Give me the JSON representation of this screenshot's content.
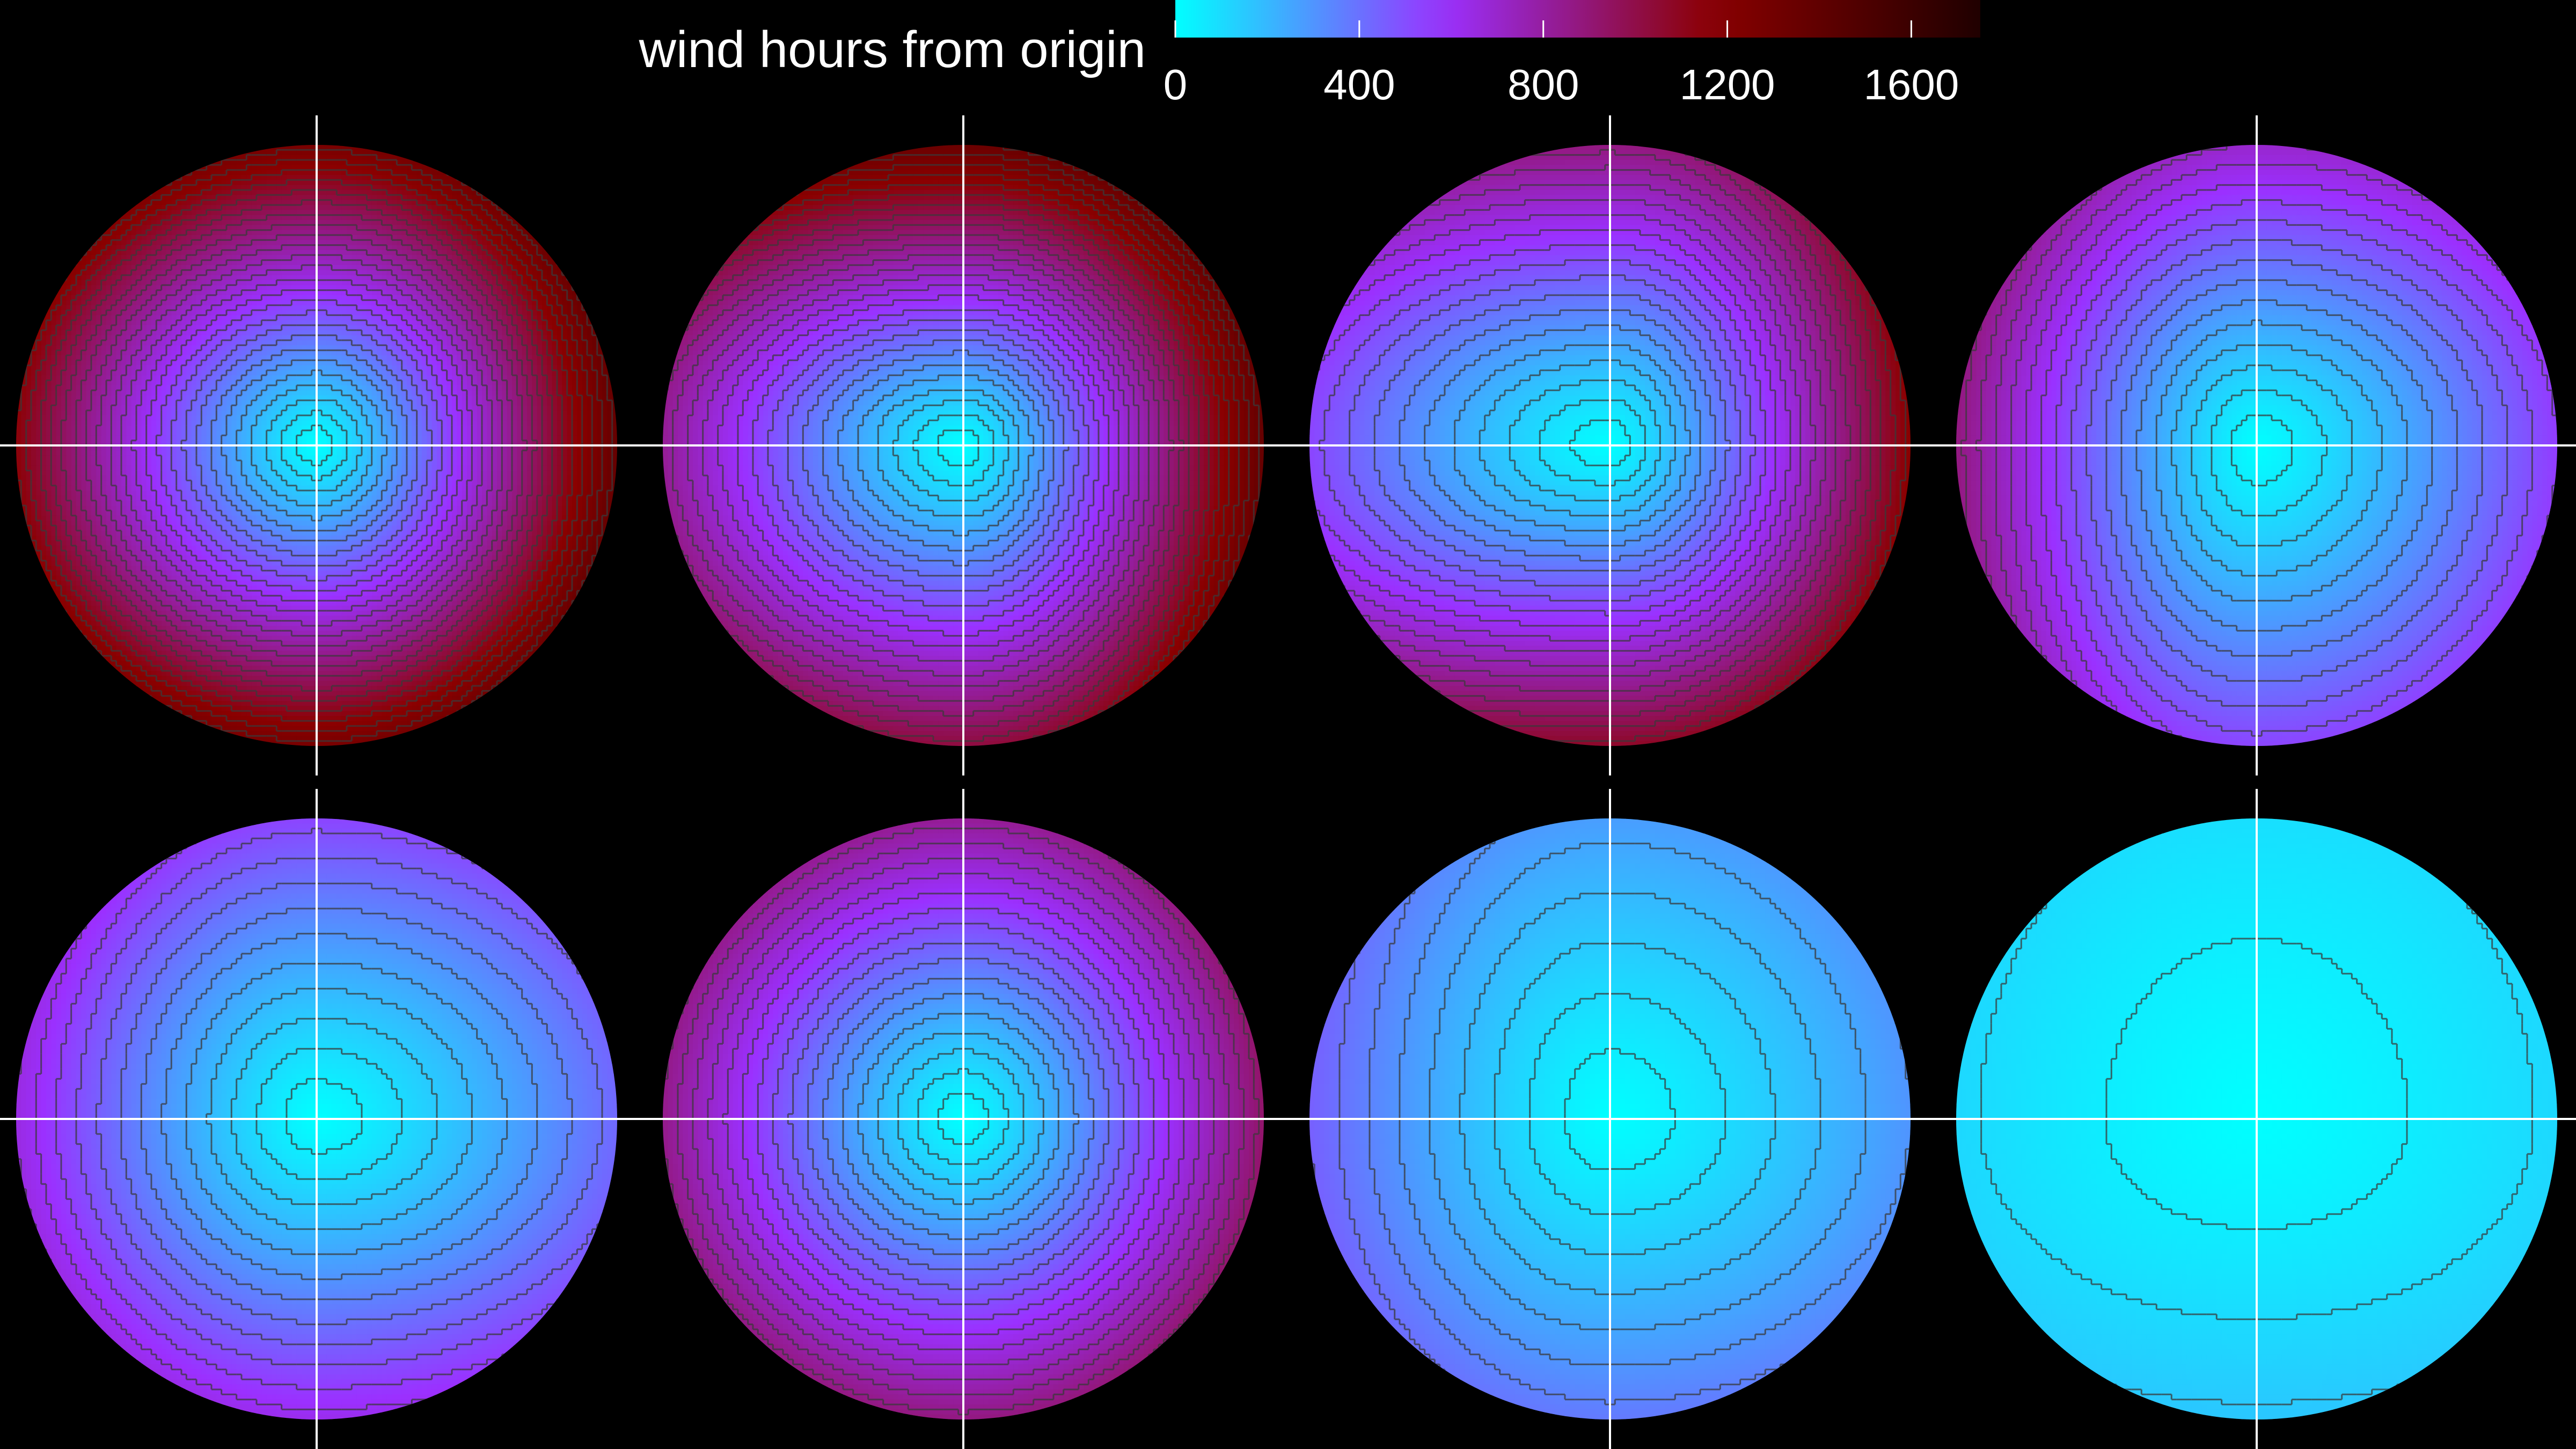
{
  "chart_data": {
    "type": "heatmap",
    "title": "",
    "colorbar": {
      "label": "wind hours from origin",
      "ticks": [
        0,
        400,
        800,
        1200,
        1600
      ],
      "range": [
        0,
        1750
      ],
      "colors": [
        "#00ffff",
        "#9b30ff",
        "#8b0000",
        "#200000"
      ]
    },
    "layout": {
      "rows": 2,
      "cols": 4
    },
    "panels": [
      {
        "id": 1,
        "min_value": 0,
        "edge_value": 1300,
        "west_value": 1000,
        "east_value": 1450,
        "north_value": 1250,
        "south_value": 1250,
        "contour_interval": 50
      },
      {
        "id": 2,
        "min_value": 0,
        "edge_value": 1150,
        "west_value": 500,
        "east_value": 1600,
        "north_value": 1550,
        "south_value": 900,
        "contour_interval": 50
      },
      {
        "id": 3,
        "min_value": 0,
        "edge_value": 850,
        "west_value": 200,
        "east_value": 1500,
        "north_value": 900,
        "south_value": 1300,
        "contour_interval": 50
      },
      {
        "id": 4,
        "min_value": 0,
        "edge_value": 650,
        "west_value": 1100,
        "east_value": 450,
        "north_value": 750,
        "south_value": 400,
        "contour_interval": 50
      },
      {
        "id": 5,
        "min_value": 0,
        "edge_value": 550,
        "west_value": 750,
        "east_value": 300,
        "north_value": 500,
        "south_value": 700,
        "contour_interval": 50
      },
      {
        "id": 6,
        "min_value": 0,
        "edge_value": 850,
        "west_value": 850,
        "east_value": 1000,
        "north_value": 800,
        "south_value": 900,
        "contour_interval": 50
      },
      {
        "id": 7,
        "min_value": 0,
        "edge_value": 350,
        "west_value": 550,
        "east_value": 250,
        "north_value": 200,
        "south_value": 400,
        "contour_interval": 50
      },
      {
        "id": 8,
        "min_value": 0,
        "edge_value": 120,
        "west_value": 100,
        "east_value": 100,
        "north_value": 60,
        "south_value": 200,
        "contour_interval": 50
      }
    ]
  }
}
